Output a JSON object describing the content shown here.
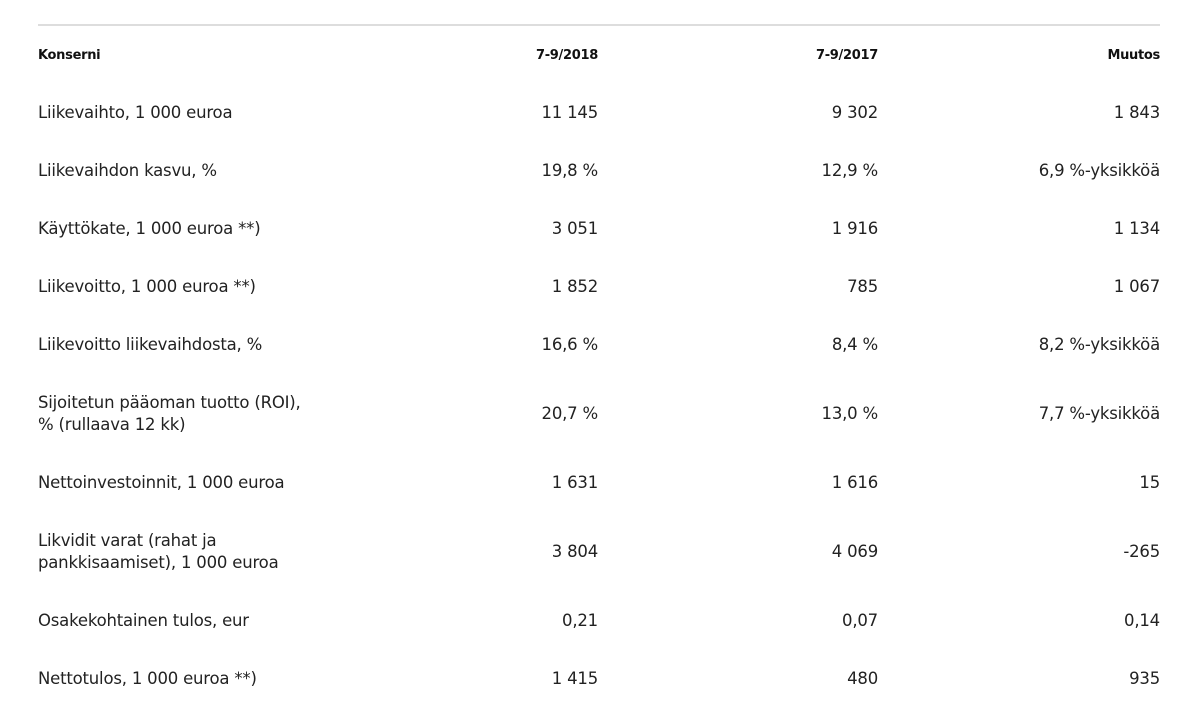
{
  "table": {
    "header": [
      "Konserni",
      "7-9/2018",
      "7-9/2017",
      "Muutos"
    ],
    "rows": [
      [
        "Liikevaihto, 1 000 euroa",
        "11 145",
        "9 302",
        "1 843"
      ],
      [
        "Liikevaihdon kasvu, %",
        "19,8 %",
        "12,9 %",
        "6,9 %-yksikköä"
      ],
      [
        "Käyttökate, 1 000 euroa **)",
        "3 051",
        "1 916",
        "1 134"
      ],
      [
        "Liikevoitto, 1 000 euroa **)",
        "1 852",
        "785",
        "1 067"
      ],
      [
        "Liikevoitto liikevaihdosta, %",
        "16,6 %",
        "8,4 %",
        "8,2 %-yksikköä"
      ],
      [
        "Sijoitetun pääoman tuotto (ROI),\n% (rullaava 12 kk)",
        "20,7 %",
        "13,0 %",
        "7,7 %-yksikköä"
      ],
      [
        "Nettoinvestoinnit, 1 000 euroa",
        "1 631",
        "1 616",
        "15"
      ],
      [
        "Likvidit varat (rahat ja\npankkisaamiset), 1 000 euroa",
        "3 804",
        "4 069",
        "-265"
      ],
      [
        "Osakekohtainen tulos, eur",
        "0,21",
        "0,07",
        "0,14"
      ],
      [
        "Nettotulos, 1 000 euroa **)",
        "1 415",
        "480",
        "935"
      ]
    ]
  }
}
